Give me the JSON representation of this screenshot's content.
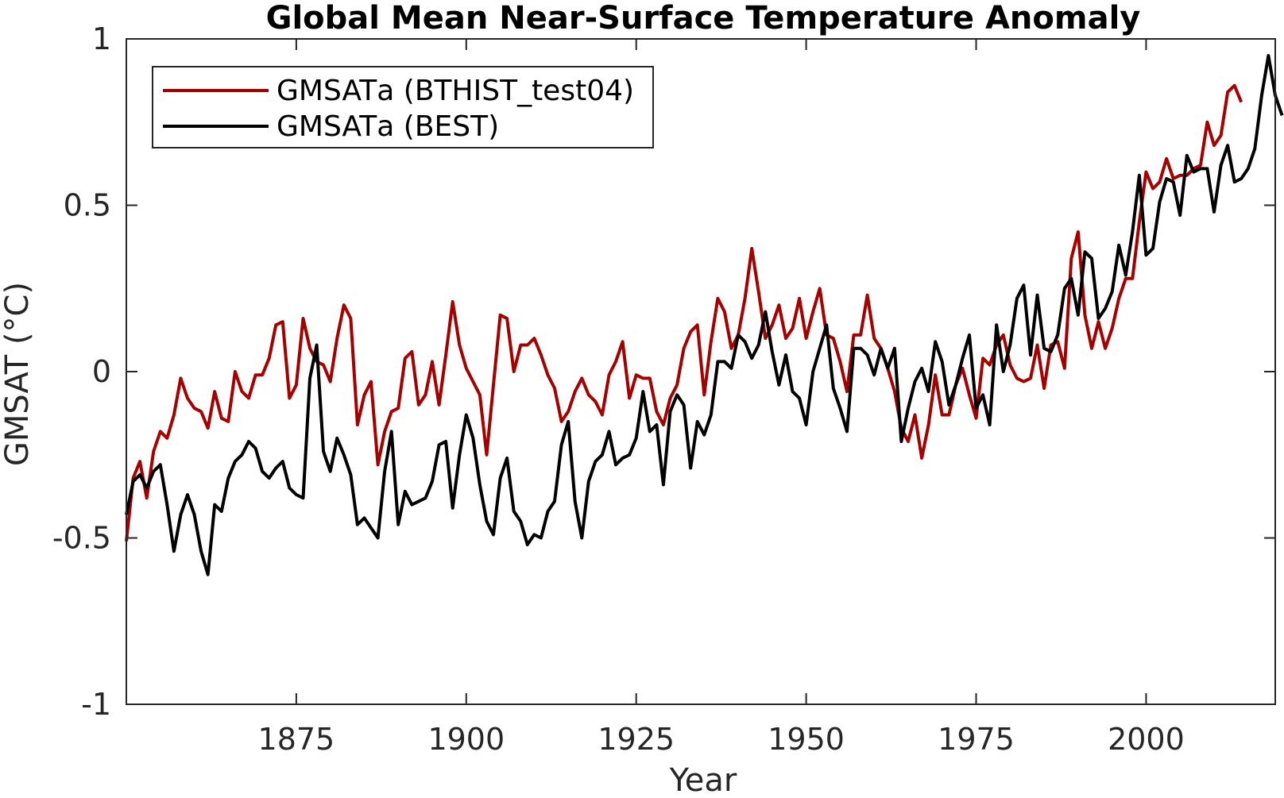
{
  "chart_data": {
    "type": "line",
    "title": "Global Mean Near-Surface Temperature Anomaly",
    "xlabel": "Year",
    "ylabel": "GMSAT (°C)",
    "xlim": [
      1850,
      2019
    ],
    "ylim": [
      -1,
      1
    ],
    "xticks": [
      1875,
      1900,
      1925,
      1950,
      1975,
      2000
    ],
    "yticks": [
      -1,
      -0.5,
      0,
      0.5,
      1
    ],
    "ytick_labels": [
      "-1",
      "-0.5",
      "0",
      "0.5",
      "1"
    ],
    "grid": false,
    "legend_position": "top-left",
    "series": [
      {
        "name": "GMSATа (BTHIST_test04)",
        "color": "#a50000",
        "x_start": 1850,
        "values": [
          -0.51,
          -0.32,
          -0.27,
          -0.38,
          -0.24,
          -0.18,
          -0.2,
          -0.13,
          -0.02,
          -0.08,
          -0.11,
          -0.12,
          -0.17,
          -0.06,
          -0.14,
          -0.15,
          0.0,
          -0.06,
          -0.08,
          -0.01,
          -0.01,
          0.04,
          0.14,
          0.15,
          -0.08,
          -0.04,
          0.16,
          0.07,
          0.03,
          0.02,
          -0.03,
          0.1,
          0.2,
          0.16,
          -0.16,
          -0.07,
          -0.03,
          -0.28,
          -0.18,
          -0.12,
          -0.11,
          0.04,
          0.06,
          -0.1,
          -0.07,
          0.03,
          -0.1,
          0.05,
          0.21,
          0.08,
          0.01,
          -0.03,
          -0.07,
          -0.25,
          -0.04,
          0.17,
          0.16,
          0.0,
          0.08,
          0.08,
          0.1,
          0.05,
          -0.01,
          -0.05,
          -0.15,
          -0.12,
          -0.06,
          -0.02,
          -0.07,
          -0.09,
          -0.13,
          -0.01,
          0.03,
          0.09,
          -0.08,
          -0.01,
          -0.02,
          -0.02,
          -0.12,
          -0.16,
          -0.08,
          -0.04,
          0.07,
          0.12,
          0.14,
          -0.07,
          0.09,
          0.22,
          0.18,
          0.07,
          0.11,
          0.22,
          0.37,
          0.24,
          0.1,
          0.14,
          0.2,
          0.1,
          0.13,
          0.22,
          0.1,
          0.18,
          0.25,
          0.11,
          0.1,
          0.03,
          -0.06,
          0.11,
          0.11,
          0.23,
          0.1,
          0.07,
          0.01,
          -0.06,
          -0.17,
          -0.21,
          -0.13,
          -0.26,
          -0.16,
          -0.01,
          -0.13,
          -0.13,
          -0.04,
          0.01,
          -0.07,
          -0.14,
          0.04,
          0.02,
          0.08,
          0.11,
          0.02,
          -0.02,
          -0.03,
          -0.02,
          0.08,
          -0.05,
          0.08,
          0.09,
          0.01,
          0.34,
          0.42,
          0.17,
          0.07,
          0.15,
          0.07,
          0.13,
          0.22,
          0.28,
          0.28,
          0.45,
          0.6,
          0.55,
          0.57,
          0.64,
          0.58,
          0.59,
          0.59,
          0.61,
          0.62,
          0.75,
          0.68,
          0.71,
          0.84,
          0.86,
          0.81
        ]
      },
      {
        "name": "GMSATа (BEST)",
        "color": "#000000",
        "x_start": 1850,
        "values": [
          -0.43,
          -0.33,
          -0.31,
          -0.35,
          -0.3,
          -0.28,
          -0.4,
          -0.54,
          -0.43,
          -0.37,
          -0.43,
          -0.54,
          -0.61,
          -0.4,
          -0.42,
          -0.32,
          -0.27,
          -0.25,
          -0.21,
          -0.23,
          -0.3,
          -0.32,
          -0.29,
          -0.27,
          -0.35,
          -0.37,
          -0.38,
          -0.02,
          0.08,
          -0.24,
          -0.3,
          -0.2,
          -0.25,
          -0.31,
          -0.46,
          -0.44,
          -0.47,
          -0.5,
          -0.3,
          -0.18,
          -0.46,
          -0.36,
          -0.4,
          -0.39,
          -0.38,
          -0.33,
          -0.22,
          -0.21,
          -0.41,
          -0.25,
          -0.13,
          -0.2,
          -0.34,
          -0.45,
          -0.49,
          -0.32,
          -0.26,
          -0.42,
          -0.45,
          -0.52,
          -0.49,
          -0.5,
          -0.42,
          -0.39,
          -0.22,
          -0.15,
          -0.39,
          -0.5,
          -0.33,
          -0.27,
          -0.25,
          -0.18,
          -0.28,
          -0.26,
          -0.25,
          -0.2,
          -0.06,
          -0.18,
          -0.16,
          -0.34,
          -0.12,
          -0.07,
          -0.1,
          -0.29,
          -0.15,
          -0.19,
          -0.13,
          0.03,
          0.03,
          0.01,
          0.11,
          0.09,
          0.04,
          0.08,
          0.18,
          0.06,
          -0.04,
          0.05,
          -0.06,
          -0.08,
          -0.16,
          0.0,
          0.07,
          0.14,
          -0.05,
          -0.11,
          -0.18,
          0.07,
          0.07,
          0.05,
          -0.01,
          0.07,
          0.01,
          0.07,
          -0.21,
          -0.11,
          -0.03,
          0.01,
          -0.06,
          0.09,
          0.03,
          -0.1,
          -0.04,
          0.04,
          0.11,
          -0.11,
          -0.07,
          -0.16,
          0.14,
          0.0,
          0.08,
          0.22,
          0.26,
          0.05,
          0.23,
          0.07,
          0.06,
          0.11,
          0.25,
          0.28,
          0.17,
          0.36,
          0.34,
          0.16,
          0.19,
          0.24,
          0.38,
          0.29,
          0.42,
          0.59,
          0.35,
          0.37,
          0.51,
          0.58,
          0.57,
          0.47,
          0.65,
          0.6,
          0.61,
          0.61,
          0.48,
          0.62,
          0.68,
          0.57,
          0.58,
          0.61,
          0.67,
          0.83,
          0.95,
          0.83,
          0.77
        ]
      }
    ]
  }
}
